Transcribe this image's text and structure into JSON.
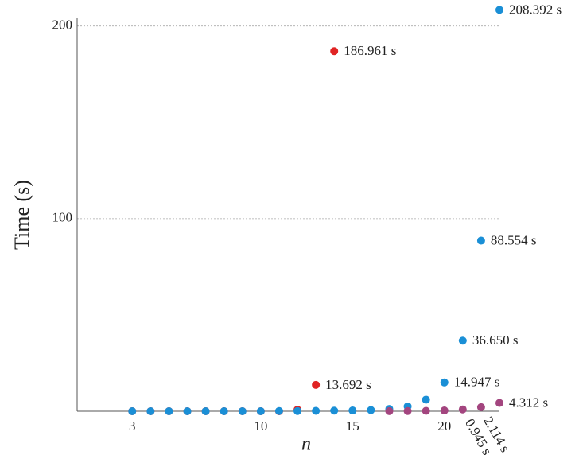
{
  "chart_data": {
    "type": "scatter",
    "x_label": "n",
    "y_label": "Time (s)",
    "xlim": [
      0,
      23
    ],
    "ylim": [
      0,
      204
    ],
    "xticks": [
      3,
      10,
      15,
      20
    ],
    "yticks": [
      100,
      200
    ],
    "grid": true,
    "series": [
      {
        "color": "#e02424",
        "x": [
          3,
          4,
          5,
          6,
          7,
          8,
          9,
          10,
          11,
          12,
          13,
          14
        ],
        "values": [
          0,
          0,
          0,
          0,
          0,
          0,
          0,
          0,
          0,
          0.8,
          13.692,
          186.961
        ],
        "value_labels": [
          null,
          null,
          null,
          null,
          null,
          null,
          null,
          null,
          null,
          null,
          "13.692 s",
          "186.961 s"
        ]
      },
      {
        "color": "#1a8fd6",
        "x": [
          3,
          4,
          5,
          6,
          7,
          8,
          9,
          10,
          11,
          12,
          13,
          14,
          15,
          16,
          17,
          18,
          19,
          20,
          21,
          22,
          23
        ],
        "values": [
          0,
          0,
          0,
          0,
          0,
          0,
          0,
          0,
          0.1,
          0.1,
          0.2,
          0.3,
          0.4,
          0.6,
          1.2,
          2.5,
          6,
          14.947,
          36.65,
          88.554,
          208.392
        ],
        "value_labels": [
          null,
          null,
          null,
          null,
          null,
          null,
          null,
          null,
          null,
          null,
          null,
          null,
          null,
          null,
          null,
          null,
          null,
          "14.947 s",
          "36.650 s",
          "88.554 s",
          "208.392 s"
        ]
      },
      {
        "color": "#a3457f",
        "x": [
          17,
          18,
          19,
          20,
          21,
          22,
          23
        ],
        "values": [
          0.05,
          0.1,
          0.2,
          0.4,
          0.945,
          2.114,
          4.312
        ],
        "value_labels": [
          null,
          null,
          null,
          null,
          "0.945 s",
          "2.114 s",
          "4.312 s"
        ]
      }
    ]
  }
}
